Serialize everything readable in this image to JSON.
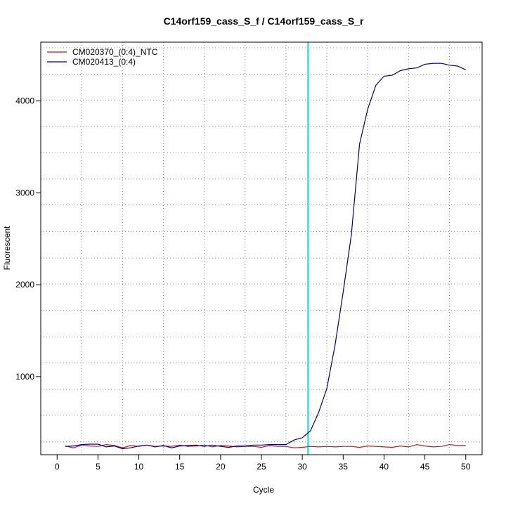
{
  "chart_data": {
    "type": "line",
    "title": "C14orf159_cass_S_f / C14orf159_cass_S_r",
    "xlabel": "Cycle",
    "ylabel": "Fluorescent",
    "xlim": [
      -2,
      52
    ],
    "ylim": [
      150,
      4640
    ],
    "x_ticks": [
      0,
      5,
      10,
      15,
      20,
      25,
      30,
      35,
      40,
      45,
      50
    ],
    "y_ticks": [
      1000,
      2000,
      3000,
      4000
    ],
    "grid": true,
    "grid_x": [
      3,
      8,
      13,
      18,
      23,
      28,
      33,
      38,
      43,
      48
    ],
    "grid_y": [
      290,
      580,
      860,
      1150,
      1430,
      1720,
      2010,
      2290,
      2580,
      2870,
      3150,
      3440,
      3720,
      4010,
      4290,
      4580
    ],
    "threshold_line": {
      "x": 30.7,
      "color": "#00e5ee"
    },
    "legend_position": "top-left",
    "series": [
      {
        "name": "CM020370_(0:4)_NTC",
        "color": "#b22222",
        "x": [
          1,
          2,
          3,
          4,
          5,
          6,
          7,
          8,
          9,
          10,
          11,
          12,
          13,
          14,
          15,
          16,
          17,
          18,
          19,
          20,
          21,
          22,
          23,
          24,
          25,
          26,
          27,
          28,
          29,
          30,
          31,
          32,
          33,
          34,
          35,
          36,
          37,
          38,
          39,
          40,
          41,
          42,
          43,
          44,
          45,
          46,
          47,
          48,
          49,
          50
        ],
        "values": [
          245,
          225,
          255,
          245,
          240,
          260,
          250,
          225,
          250,
          240,
          255,
          240,
          245,
          240,
          255,
          240,
          245,
          255,
          235,
          250,
          245,
          235,
          240,
          240,
          230,
          250,
          240,
          240,
          225,
          230,
          240,
          235,
          240,
          235,
          240,
          240,
          230,
          245,
          240,
          235,
          230,
          245,
          235,
          260,
          245,
          235,
          240,
          260,
          250,
          250
        ]
      },
      {
        "name": "CM020413_(0:4)",
        "color": "#00008b",
        "x": [
          1,
          2,
          3,
          4,
          5,
          6,
          7,
          8,
          9,
          10,
          11,
          12,
          13,
          14,
          15,
          16,
          17,
          18,
          19,
          20,
          21,
          22,
          23,
          24,
          25,
          26,
          27,
          28,
          29,
          30,
          31,
          32,
          33,
          34,
          35,
          36,
          37,
          38,
          39,
          40,
          41,
          42,
          43,
          44,
          45,
          46,
          47,
          48,
          49,
          50
        ],
        "values": [
          240,
          245,
          260,
          265,
          265,
          235,
          245,
          215,
          225,
          245,
          255,
          235,
          250,
          225,
          245,
          250,
          255,
          240,
          255,
          240,
          230,
          245,
          245,
          255,
          255,
          260,
          260,
          260,
          310,
          335,
          410,
          610,
          870,
          1340,
          1920,
          2540,
          3530,
          3910,
          4170,
          4270,
          4280,
          4330,
          4350,
          4360,
          4400,
          4410,
          4410,
          4390,
          4380,
          4340
        ]
      }
    ]
  }
}
